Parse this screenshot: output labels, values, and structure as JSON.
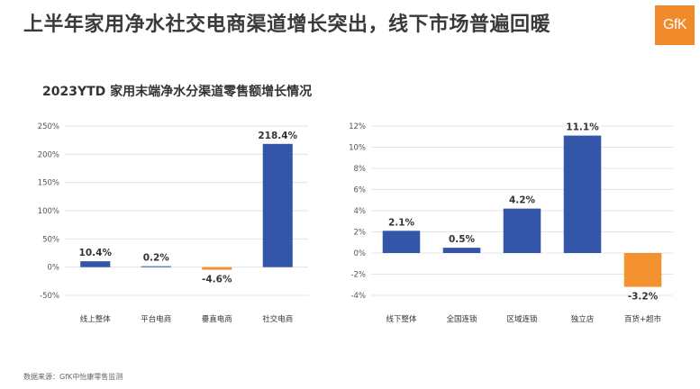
{
  "headline": "上半年家用净水社交电商渠道增长突出，线下市场普遍回暖",
  "logo_text": "GfK",
  "subtitle": "2023YTD 家用末端净水分渠道零售额增长情况",
  "source": "数据来源：GfK中怡康零售监测",
  "colors": {
    "positive": "#3356a8",
    "negative": "#f4922f",
    "logo": "#f08a2a"
  },
  "chart_data": [
    {
      "type": "bar",
      "categories": [
        "线上整体",
        "平台电商",
        "垂直电商",
        "社交电商"
      ],
      "values": [
        10.4,
        0.2,
        -4.6,
        218.4
      ],
      "data_labels": [
        "10.4%",
        "0.2%",
        "-4.6%",
        "218.4%"
      ],
      "y_ticks": [
        "250%",
        "200%",
        "150%",
        "100%",
        "50%",
        "0%",
        "-50%"
      ],
      "y_tick_values": [
        250,
        200,
        150,
        100,
        50,
        0,
        -50
      ],
      "ylim": [
        -50,
        250
      ],
      "grid": true
    },
    {
      "type": "bar",
      "categories": [
        "线下整体",
        "全国连锁",
        "区域连锁",
        "独立店",
        "百货+超市"
      ],
      "values": [
        2.1,
        0.5,
        4.2,
        11.1,
        -3.2
      ],
      "data_labels": [
        "2.1%",
        "0.5%",
        "4.2%",
        "11.1%",
        "-3.2%"
      ],
      "y_ticks": [
        "12%",
        "10%",
        "8%",
        "6%",
        "4%",
        "2%",
        "0%",
        "-2%",
        "-4%"
      ],
      "y_tick_values": [
        12,
        10,
        8,
        6,
        4,
        2,
        0,
        -2,
        -4
      ],
      "ylim": [
        -4,
        12
      ],
      "grid": true
    }
  ]
}
